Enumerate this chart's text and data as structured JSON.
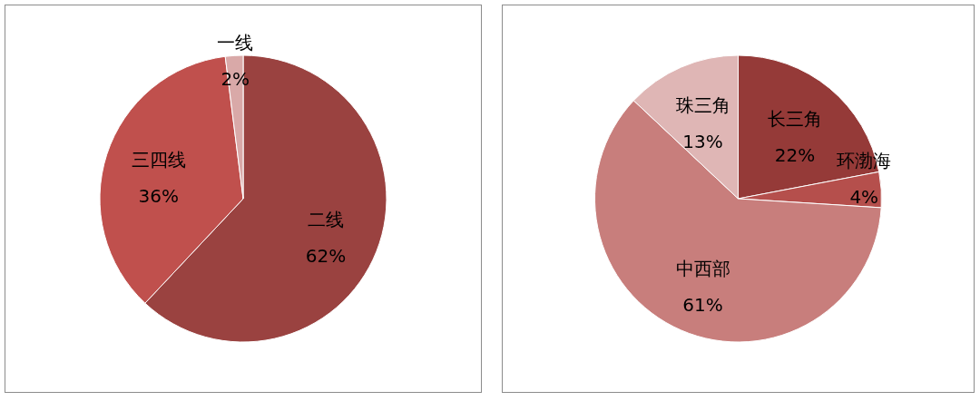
{
  "chart_data": [
    {
      "type": "pie",
      "categories": [
        "二线",
        "三四线",
        "一线"
      ],
      "values": [
        62,
        36,
        2
      ],
      "colors": [
        "#9a4240",
        "#c0504d",
        "#d9a9a8"
      ],
      "value_labels": [
        "62%",
        "36%",
        "2%"
      ]
    },
    {
      "type": "pie",
      "categories": [
        "长三角",
        "环渤海",
        "中西部",
        "珠三角"
      ],
      "values": [
        22,
        4,
        61,
        13
      ],
      "colors": [
        "#953a38",
        "#b54f4c",
        "#c87e7c",
        "#dfb6b5"
      ],
      "value_labels": [
        "22%",
        "4%",
        "61%",
        "13%"
      ]
    }
  ]
}
